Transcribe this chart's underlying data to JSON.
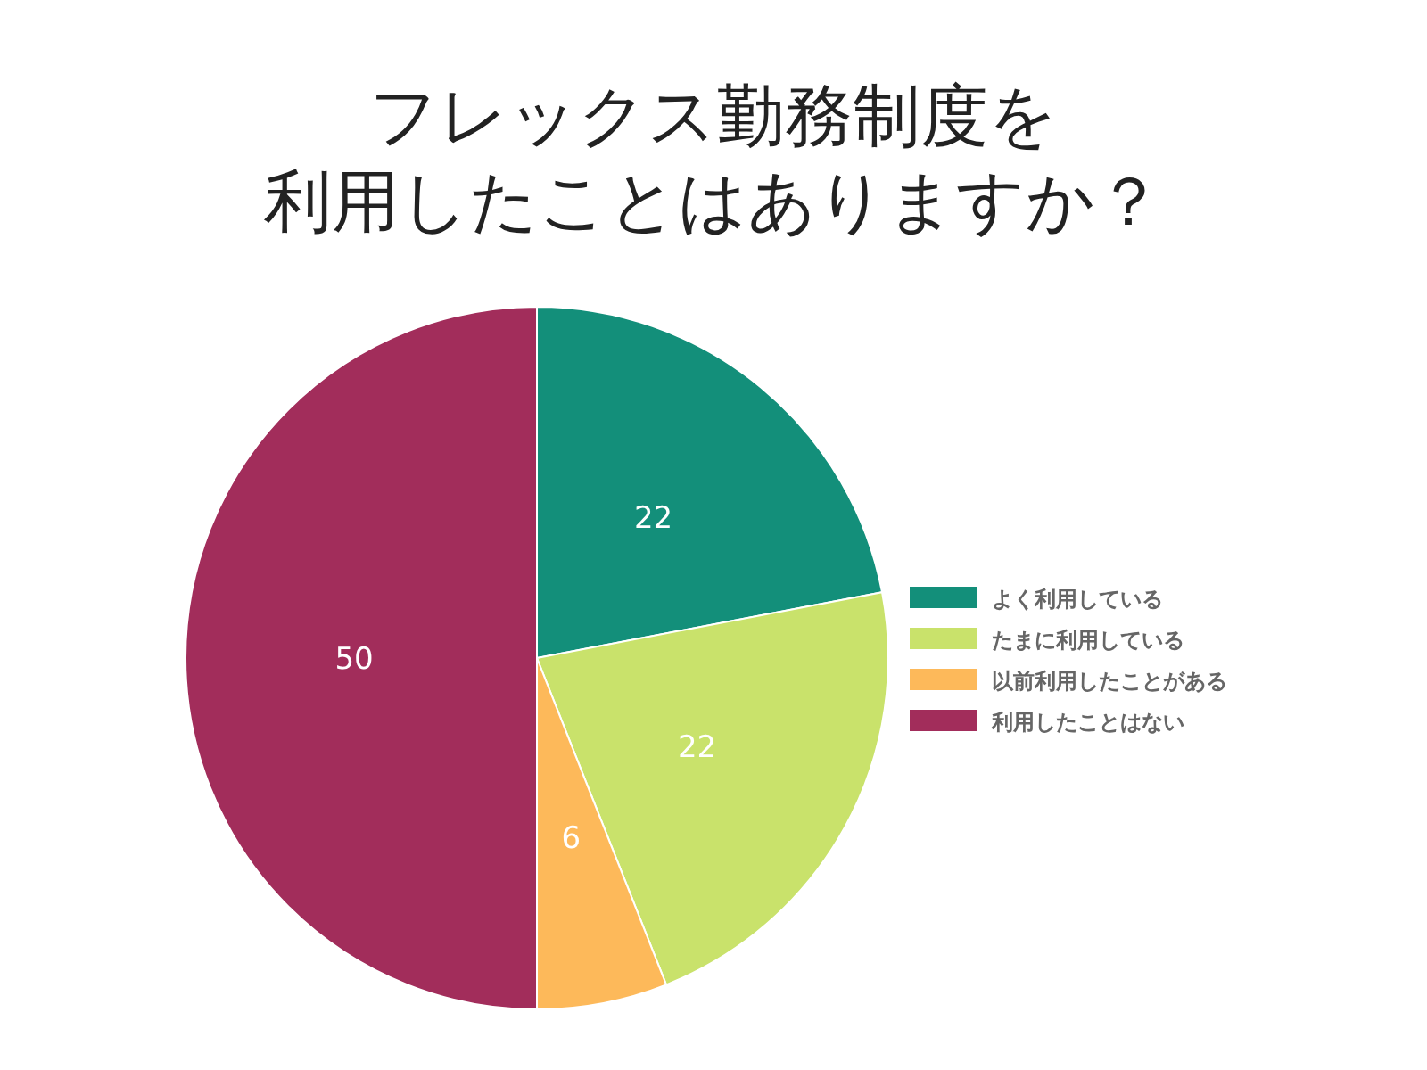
{
  "chart_data": {
    "type": "pie",
    "title": "フレックス勤務制度を利用したことはありますか？",
    "categories": [
      "よく利用している",
      "たまに利用している",
      "以前利用したことがある",
      "利用したことはない"
    ],
    "values": [
      22,
      22,
      6,
      50
    ],
    "colors": [
      "#138f7a",
      "#c9e26b",
      "#fdb95a",
      "#a22d5b"
    ],
    "data_labels": true,
    "legend": "right"
  }
}
